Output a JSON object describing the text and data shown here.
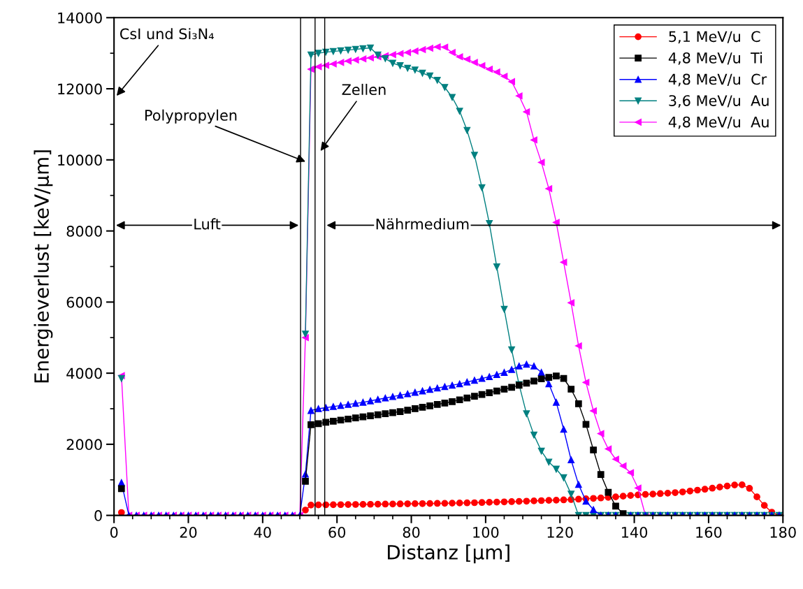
{
  "chart_data": {
    "type": "line",
    "xlabel": "Distanz [µm]",
    "ylabel": "Energieverlust [keV/µm]",
    "xlim": [
      0,
      180
    ],
    "xticks": [
      0,
      20,
      40,
      60,
      80,
      100,
      120,
      140,
      160,
      180
    ],
    "ylim": [
      0,
      14000
    ],
    "yticks": [
      0,
      2000,
      4000,
      6000,
      8000,
      10000,
      12000,
      14000
    ],
    "grid": false,
    "legend": "top right",
    "x": [
      2,
      4,
      6,
      8,
      10,
      12,
      14,
      16,
      18,
      20,
      22,
      24,
      26,
      28,
      30,
      32,
      34,
      36,
      38,
      40,
      42,
      44,
      46,
      48,
      50,
      51.5,
      53,
      55,
      57,
      59,
      61,
      63,
      65,
      67,
      69,
      71,
      73,
      75,
      77,
      79,
      81,
      83,
      85,
      87,
      89,
      91,
      93,
      95,
      97,
      99,
      101,
      103,
      105,
      107,
      109,
      111,
      113,
      115,
      117,
      119,
      121,
      123,
      125,
      127,
      129,
      131,
      133,
      135,
      137,
      139,
      141,
      143,
      145,
      147,
      149,
      151,
      153,
      155,
      157,
      159,
      161,
      163,
      165,
      167,
      169,
      171,
      173,
      175,
      177,
      179
    ],
    "series": [
      {
        "name": "5,1 MeV/u  C",
        "color": "#ff0000",
        "marker": "circle",
        "values": [
          80,
          null,
          null,
          null,
          null,
          null,
          null,
          null,
          null,
          null,
          null,
          null,
          null,
          null,
          null,
          null,
          null,
          null,
          null,
          null,
          null,
          null,
          null,
          null,
          null,
          150,
          290,
          295,
          297,
          300,
          302,
          305,
          307,
          310,
          312,
          315,
          318,
          320,
          323,
          326,
          329,
          331,
          334,
          337,
          340,
          344,
          348,
          352,
          356,
          362,
          368,
          374,
          380,
          386,
          393,
          400,
          407,
          415,
          422,
          428,
          436,
          445,
          455,
          466,
          478,
          490,
          505,
          520,
          540,
          560,
          575,
          590,
          600,
          612,
          625,
          640,
          660,
          685,
          710,
          735,
          765,
          795,
          825,
          855,
          860,
          760,
          520,
          280,
          90,
          0
        ]
      },
      {
        "name": "4,8 MeV/u  Ti",
        "color": "#000000",
        "marker": "square",
        "values": [
          750,
          null,
          null,
          null,
          null,
          null,
          null,
          null,
          null,
          null,
          null,
          null,
          null,
          null,
          null,
          null,
          null,
          null,
          null,
          null,
          null,
          null,
          null,
          null,
          null,
          960,
          2550,
          2580,
          2620,
          2650,
          2680,
          2710,
          2740,
          2770,
          2800,
          2830,
          2860,
          2890,
          2920,
          2960,
          3000,
          3040,
          3080,
          3120,
          3160,
          3200,
          3250,
          3300,
          3350,
          3400,
          3450,
          3500,
          3550,
          3600,
          3660,
          3720,
          3780,
          3840,
          3880,
          3920,
          3850,
          3550,
          3140,
          2560,
          1840,
          1150,
          650,
          260,
          50,
          null,
          null,
          null,
          null,
          null,
          null,
          null,
          null,
          null,
          null,
          null,
          null,
          null,
          null,
          null,
          null,
          null,
          null,
          null,
          null,
          null
        ]
      },
      {
        "name": "4,8 MeV/u  Cr",
        "color": "#0000ff",
        "marker": "triangle",
        "values": [
          920,
          0,
          0,
          0,
          0,
          0,
          0,
          0,
          0,
          0,
          0,
          0,
          0,
          0,
          0,
          0,
          0,
          0,
          0,
          0,
          0,
          0,
          0,
          0,
          0,
          1160,
          2950,
          3000,
          3030,
          3060,
          3090,
          3120,
          3150,
          3180,
          3220,
          3260,
          3300,
          3340,
          3380,
          3420,
          3460,
          3500,
          3540,
          3580,
          3620,
          3660,
          3700,
          3750,
          3800,
          3850,
          3900,
          3960,
          4020,
          4100,
          4200,
          4250,
          4200,
          4020,
          3700,
          3180,
          2420,
          1560,
          870,
          400,
          160,
          0,
          0,
          0,
          0,
          0,
          0,
          0,
          0,
          0,
          0,
          0,
          0,
          0,
          0,
          0,
          0,
          0,
          0,
          0,
          0,
          0,
          0,
          0,
          0,
          0
        ]
      },
      {
        "name": "3,6 MeV/u  Au",
        "color": "#008080",
        "marker": "triangle-down",
        "values": [
          3850,
          null,
          null,
          null,
          null,
          null,
          null,
          null,
          null,
          null,
          null,
          null,
          null,
          null,
          null,
          null,
          null,
          null,
          null,
          null,
          null,
          null,
          null,
          null,
          null,
          5100,
          12950,
          13000,
          13030,
          13050,
          13070,
          13090,
          13110,
          13130,
          13150,
          12950,
          12850,
          12720,
          12650,
          12580,
          12530,
          12440,
          12360,
          12240,
          12040,
          11760,
          11370,
          10830,
          10130,
          9220,
          8210,
          6990,
          5800,
          4660,
          3680,
          2860,
          2260,
          1810,
          1500,
          1300,
          1060,
          600,
          0,
          0,
          0,
          0,
          0,
          0,
          0,
          0,
          0,
          0,
          0,
          0,
          0,
          0,
          0,
          0,
          0,
          0,
          0,
          0,
          0,
          0,
          0,
          0,
          0,
          0,
          0,
          0
        ]
      },
      {
        "name": "4,8 MeV/u  Au",
        "color": "#ff00ff",
        "marker": "triangle-left",
        "values": [
          3930,
          0,
          0,
          0,
          0,
          0,
          0,
          0,
          0,
          0,
          0,
          0,
          0,
          0,
          0,
          0,
          0,
          0,
          0,
          0,
          0,
          0,
          0,
          0,
          0,
          5000,
          12550,
          12620,
          12660,
          12700,
          12740,
          12780,
          12810,
          12840,
          12870,
          12900,
          12930,
          12960,
          12990,
          13020,
          13060,
          13100,
          13140,
          13180,
          13170,
          13020,
          12900,
          12830,
          12740,
          12650,
          12550,
          12470,
          12350,
          12200,
          11800,
          11350,
          10560,
          9930,
          9190,
          8240,
          7120,
          5980,
          4770,
          3740,
          2940,
          2300,
          1870,
          1580,
          1390,
          1200,
          770,
          0,
          null,
          null,
          null,
          null,
          null,
          null,
          null,
          null,
          null,
          null,
          null,
          null,
          null,
          null,
          null,
          null,
          null,
          null
        ]
      }
    ],
    "ref_lines": [
      {
        "axis": "x",
        "value": 50.2,
        "color": "#000000"
      },
      {
        "axis": "x",
        "value": 54.1,
        "color": "#000000"
      },
      {
        "axis": "x",
        "value": 56.7,
        "color": "#000000"
      }
    ],
    "annotations": [
      "CsI und Si₃N₄",
      {
        "text": "Polypropylen",
        "x": 52,
        "y": 9930
      },
      "Zellen",
      {
        "text": "Luft",
        "x": 25,
        "y": 8160
      },
      "Nährmedium"
    ]
  }
}
